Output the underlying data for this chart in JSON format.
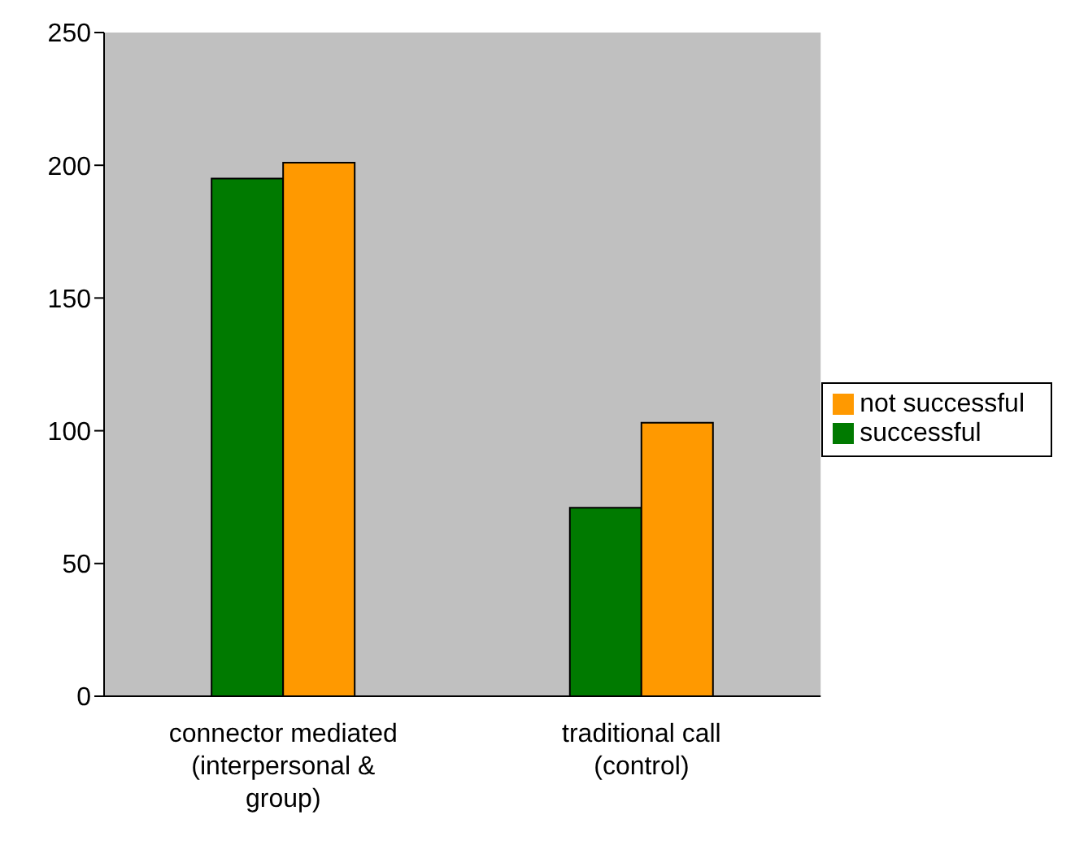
{
  "chart_data": {
    "type": "bar",
    "categories": [
      "connector mediated (interpersonal & group)",
      "traditional call (control)"
    ],
    "series": [
      {
        "name": "successful",
        "color": "#007a00",
        "values": [
          195,
          71
        ]
      },
      {
        "name": "not successful",
        "color": "#ff9900",
        "values": [
          201,
          103
        ]
      }
    ],
    "ylim": [
      0,
      250
    ],
    "yticks": [
      0,
      50,
      100,
      150,
      200,
      250
    ],
    "legend": "right"
  }
}
